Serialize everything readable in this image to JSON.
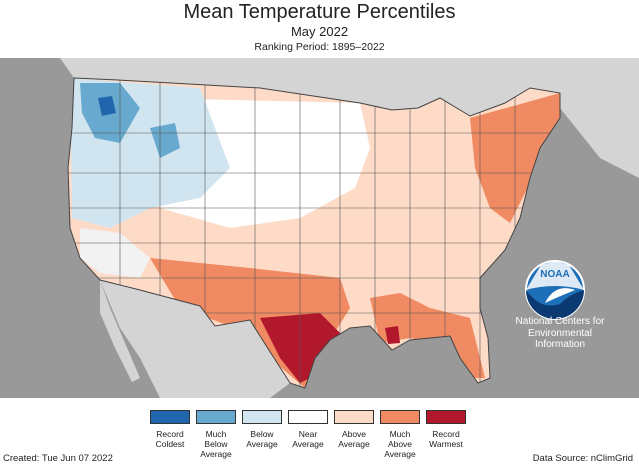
{
  "header": {
    "title": "Mean Temperature Percentiles",
    "subtitle": "May 2022",
    "ranking_period": "Ranking Period: 1895–2022"
  },
  "noaa": {
    "logo_text": "NOAA",
    "agency_lines": [
      "National Centers for",
      "Environmental",
      "Information"
    ]
  },
  "legend": [
    {
      "label": "Record\nColdest",
      "color": "#2166ac"
    },
    {
      "label": "Much\nBelow\nAverage",
      "color": "#67a9cf"
    },
    {
      "label": "Below\nAverage",
      "color": "#d1e5f0"
    },
    {
      "label": "Near\nAverage",
      "color": "#ffffff"
    },
    {
      "label": "Above\nAverage",
      "color": "#fddbc7"
    },
    {
      "label": "Much\nAbove\nAverage",
      "color": "#ef8a62"
    },
    {
      "label": "Record\nWarmest",
      "color": "#b2182b"
    }
  ],
  "footer": {
    "created": "Created: Tue Jun 07 2022",
    "source": "Data Source: nClimGrid"
  },
  "colors": {
    "ocean": "#999999",
    "foreign_land": "#d4d4d4",
    "state_border": "#555555",
    "noaa_blue": "#1d6fb8"
  }
}
